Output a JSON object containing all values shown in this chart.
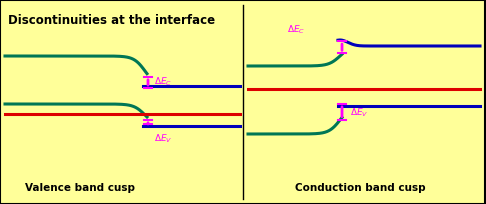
{
  "title": "Discontinuities at the interface",
  "bg_color": "#FFFF99",
  "border_color": "#000000",
  "green_color": "#007755",
  "blue_color": "#0000BB",
  "red_color": "#DD0000",
  "magenta_color": "#FF00FF",
  "bottom_label_left": "Valence band cusp",
  "bottom_label_right": "Conduction band cusp",
  "lw_green": 2.2,
  "lw_blue": 2.2,
  "lw_red": 2.2
}
